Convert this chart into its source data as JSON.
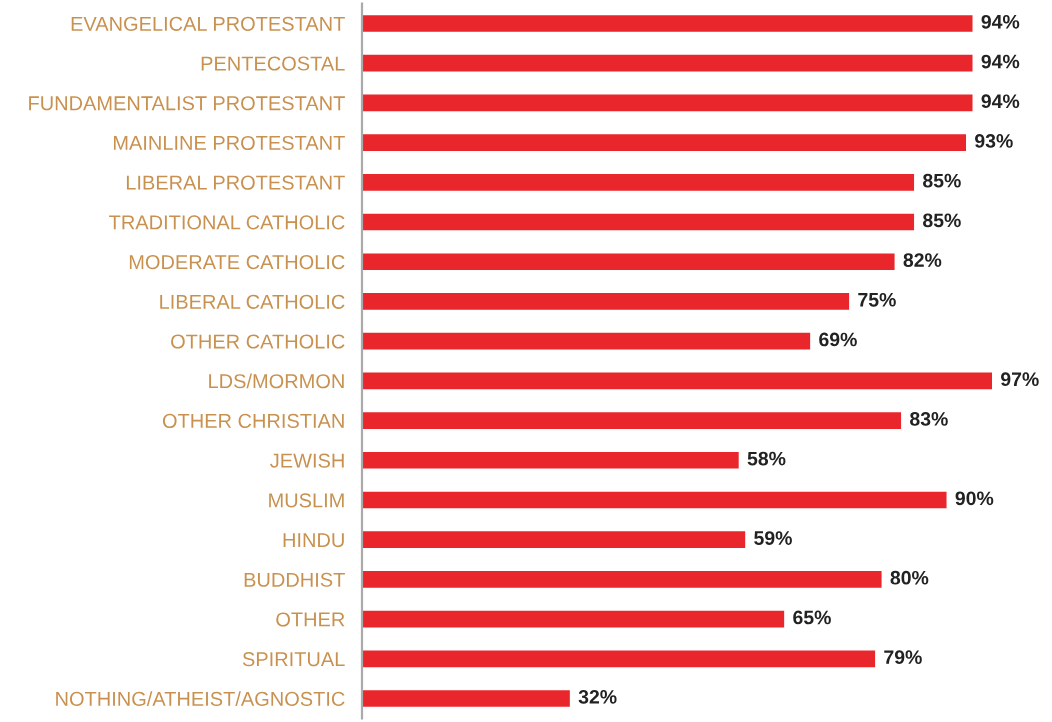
{
  "chart_data": {
    "type": "bar",
    "orientation": "horizontal",
    "categories": [
      "EVANGELICAL PROTESTANT",
      "PENTECOSTAL",
      "FUNDAMENTALIST PROTESTANT",
      "MAINLINE PROTESTANT",
      "LIBERAL PROTESTANT",
      "TRADITIONAL CATHOLIC",
      "MODERATE CATHOLIC",
      "LIBERAL CATHOLIC",
      "OTHER CATHOLIC",
      "LDS/MORMON",
      "OTHER CHRISTIAN",
      "JEWISH",
      "MUSLIM",
      "HINDU",
      "BUDDHIST",
      "OTHER",
      "SPIRITUAL",
      "NOTHING/ATHEIST/AGNOSTIC"
    ],
    "values": [
      94,
      94,
      94,
      93,
      85,
      85,
      82,
      75,
      69,
      97,
      83,
      58,
      90,
      59,
      80,
      65,
      79,
      32
    ],
    "value_labels": [
      "94%",
      "94%",
      "94%",
      "93%",
      "85%",
      "85%",
      "82%",
      "75%",
      "69%",
      "97%",
      "83%",
      "58%",
      "90%",
      "59%",
      "80%",
      "65%",
      "79%",
      "32%"
    ],
    "color": "#e8262b",
    "grid": false,
    "legend": false
  }
}
